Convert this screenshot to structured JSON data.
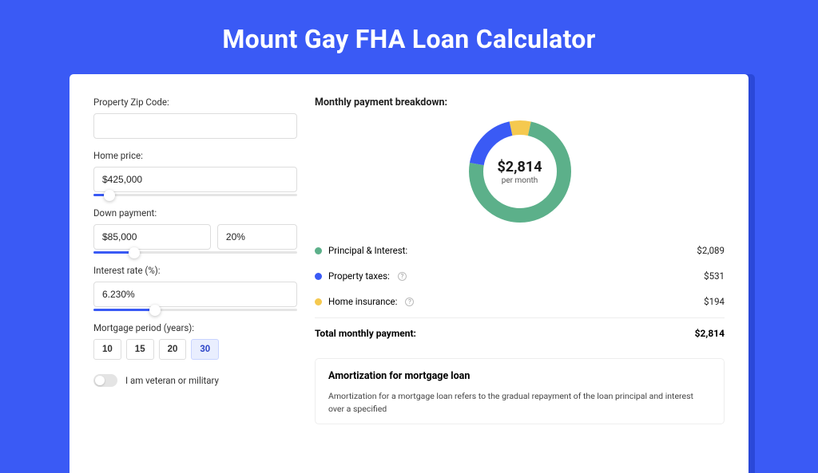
{
  "title": "Mount Gay FHA Loan Calculator",
  "colors": {
    "page_bg": "#3a5af5",
    "accent": "#3a5af5",
    "principal": "#5cb08a",
    "taxes": "#3a5af5",
    "insurance": "#f5c94f"
  },
  "form": {
    "zip": {
      "label": "Property Zip Code:",
      "value": ""
    },
    "home_price": {
      "label": "Home price:",
      "value": "$425,000",
      "slider_pct": 8
    },
    "down_payment": {
      "label": "Down payment:",
      "amount": "$85,000",
      "pct": "20%",
      "slider_pct": 20
    },
    "interest": {
      "label": "Interest rate (%):",
      "value": "6.230%",
      "slider_pct": 30
    },
    "period": {
      "label": "Mortgage period (years):",
      "options": [
        "10",
        "15",
        "20",
        "30"
      ],
      "active": "30"
    },
    "veteran": {
      "label": "I am veteran or military",
      "on": false
    }
  },
  "breakdown": {
    "title": "Monthly payment breakdown:",
    "donut": {
      "amount": "$2,814",
      "sub": "per month",
      "segments": [
        {
          "key": "insurance",
          "color": "#f5c94f",
          "value": 194
        },
        {
          "key": "principal",
          "color": "#5cb08a",
          "value": 2089
        },
        {
          "key": "taxes",
          "color": "#3a5af5",
          "value": 531
        }
      ],
      "total": 2814,
      "stroke_width": 18,
      "radius": 55,
      "size": 130
    },
    "rows": [
      {
        "label": "Principal & Interest:",
        "value": "$2,089",
        "color": "#5cb08a",
        "info": false
      },
      {
        "label": "Property taxes:",
        "value": "$531",
        "color": "#3a5af5",
        "info": true
      },
      {
        "label": "Home insurance:",
        "value": "$194",
        "color": "#f5c94f",
        "info": true
      }
    ],
    "total": {
      "label": "Total monthly payment:",
      "value": "$2,814"
    }
  },
  "amortization": {
    "title": "Amortization for mortgage loan",
    "text": "Amortization for a mortgage loan refers to the gradual repayment of the loan principal and interest over a specified"
  }
}
